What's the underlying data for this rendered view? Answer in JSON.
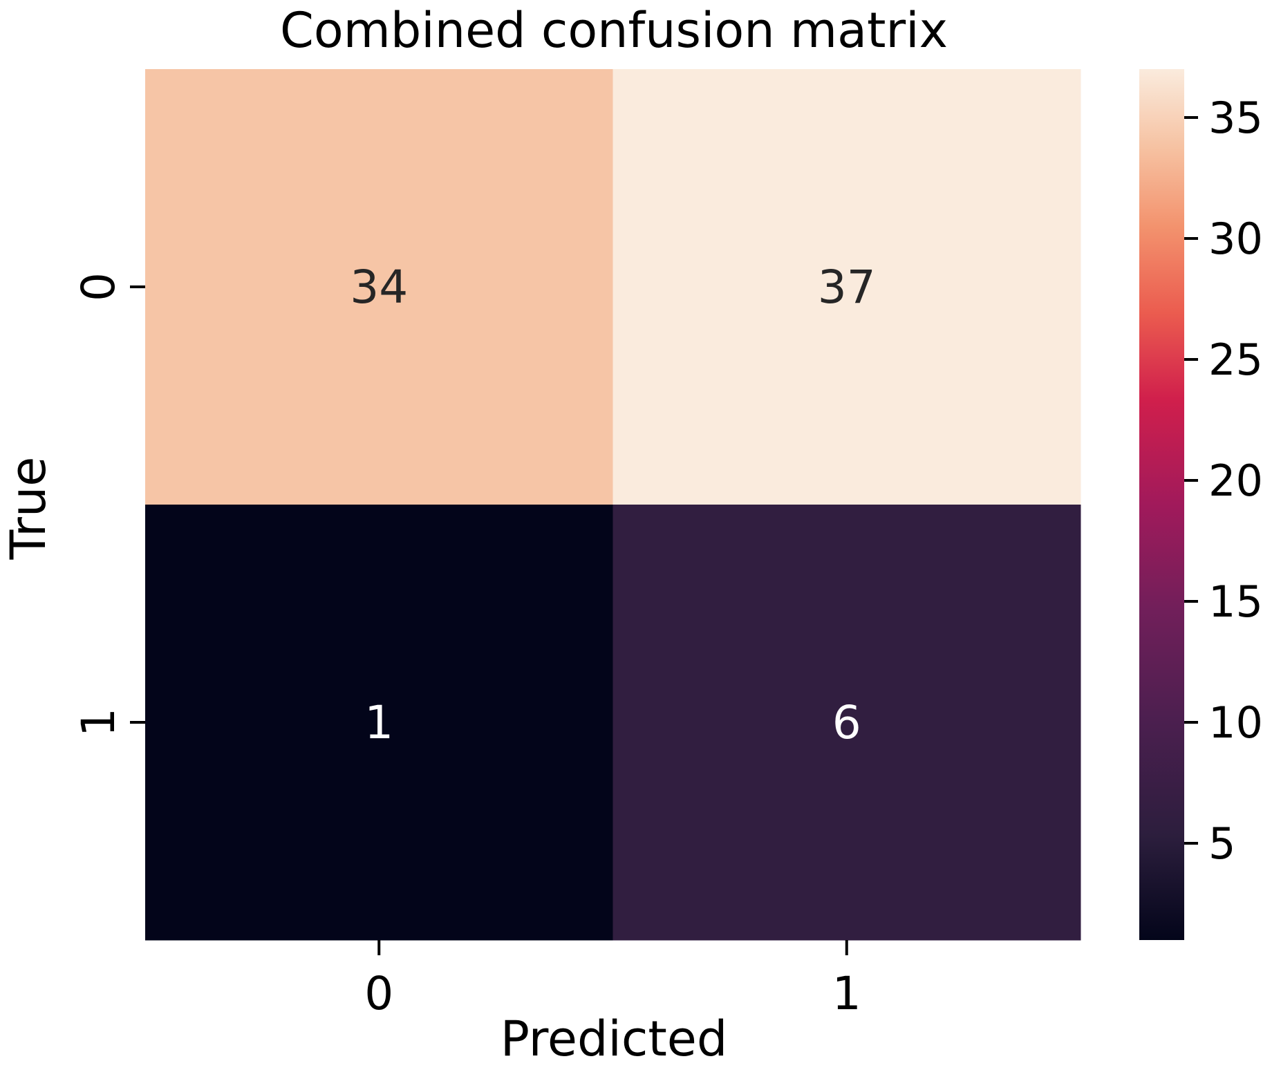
{
  "chart_data": {
    "type": "heatmap",
    "title": "Combined confusion matrix",
    "xlabel": "Predicted",
    "ylabel": "True",
    "x_categories": [
      "0",
      "1"
    ],
    "y_categories": [
      "0",
      "1"
    ],
    "values": [
      [
        34,
        37
      ],
      [
        1,
        6
      ]
    ],
    "colormap": "rocket",
    "color_range": [
      1,
      37
    ],
    "colorbar_ticks": [
      5,
      10,
      15,
      20,
      25,
      30,
      35
    ]
  }
}
